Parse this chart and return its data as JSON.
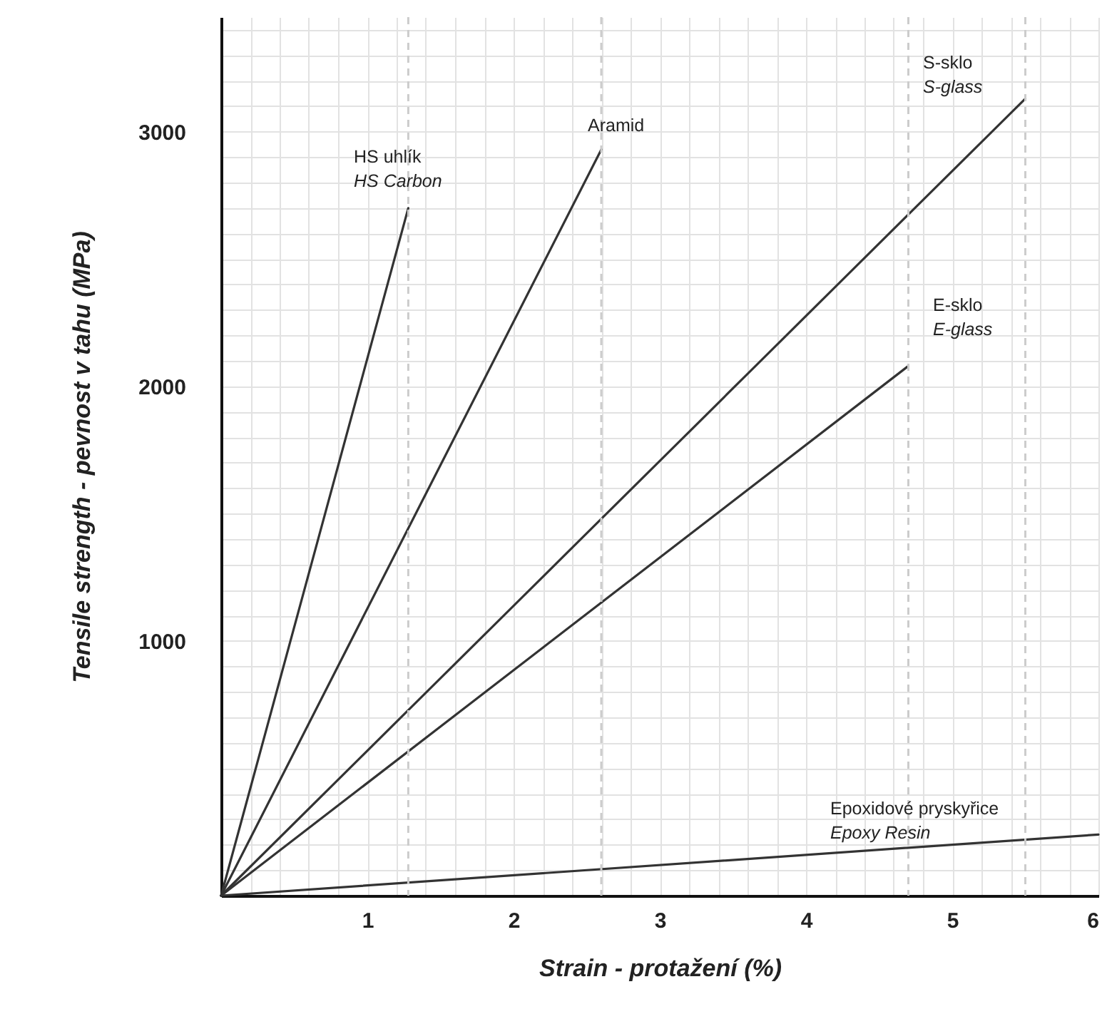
{
  "chart_data": {
    "type": "line",
    "xlabel": "Strain - protažení (%)",
    "ylabel": "Tensile strength - pevnost v tahu (MPa)",
    "xlim": [
      0,
      6
    ],
    "ylim": [
      0,
      3450
    ],
    "grid": true,
    "marker": "none",
    "line_style": "solid",
    "xticks": [
      {
        "value": 0.2,
        "label": null
      },
      {
        "value": 0.4,
        "label": null
      },
      {
        "value": 0.6,
        "label": null
      },
      {
        "value": 0.8,
        "label": null
      },
      1,
      {
        "value": 1.2,
        "label": null
      },
      {
        "value": 1.4,
        "label": null
      },
      {
        "value": 1.6,
        "label": null
      },
      {
        "value": 1.8,
        "label": null
      },
      2,
      {
        "value": 2.2,
        "label": null
      },
      {
        "value": 2.4,
        "label": null
      },
      {
        "value": 2.6,
        "label": null
      },
      {
        "value": 2.8,
        "label": null
      },
      3,
      {
        "value": 3.2,
        "label": null
      },
      {
        "value": 3.4,
        "label": null
      },
      {
        "value": 3.6,
        "label": null
      },
      {
        "value": 3.8,
        "label": null
      },
      4,
      {
        "value": 4.2,
        "label": null
      },
      {
        "value": 4.4,
        "label": null
      },
      {
        "value": 4.6,
        "label": null
      },
      {
        "value": 4.8,
        "label": null
      },
      5,
      {
        "value": 5.2,
        "label": null
      },
      {
        "value": 5.4,
        "label": null
      },
      {
        "value": 5.6,
        "label": null
      },
      {
        "value": 5.8,
        "label": null
      },
      6
    ],
    "yticks": [
      {
        "value": 100,
        "label": null
      },
      {
        "value": 200,
        "label": null
      },
      {
        "value": 300,
        "label": null
      },
      {
        "value": 400,
        "label": null
      },
      {
        "value": 500,
        "label": null
      },
      {
        "value": 600,
        "label": null
      },
      {
        "value": 700,
        "label": null
      },
      {
        "value": 800,
        "label": null
      },
      {
        "value": 900,
        "label": null
      },
      1000,
      {
        "value": 1100,
        "label": null
      },
      {
        "value": 1200,
        "label": null
      },
      {
        "value": 1300,
        "label": null
      },
      {
        "value": 1400,
        "label": null
      },
      {
        "value": 1500,
        "label": null
      },
      {
        "value": 1600,
        "label": null
      },
      {
        "value": 1700,
        "label": null
      },
      {
        "value": 1800,
        "label": null
      },
      {
        "value": 1900,
        "label": null
      },
      2000,
      {
        "value": 2100,
        "label": null
      },
      {
        "value": 2200,
        "label": null
      },
      {
        "value": 2300,
        "label": null
      },
      {
        "value": 2400,
        "label": null
      },
      {
        "value": 2500,
        "label": null
      },
      {
        "value": 2600,
        "label": null
      },
      {
        "value": 2700,
        "label": null
      },
      {
        "value": 2800,
        "label": null
      },
      {
        "value": 2900,
        "label": null
      },
      3000,
      {
        "value": 3100,
        "label": null
      },
      {
        "value": 3200,
        "label": null
      },
      {
        "value": 3300,
        "label": null
      },
      {
        "value": 3400,
        "label": null
      }
    ],
    "series": [
      {
        "color": "#333333",
        "x": [
          0,
          1.28
        ],
        "values": [
          0,
          2700
        ]
      },
      {
        "color": "#333333",
        "x": [
          0,
          2.6
        ],
        "values": [
          0,
          2930
        ]
      },
      {
        "color": "#333333",
        "x": [
          0,
          5.5
        ],
        "values": [
          0,
          3130
        ]
      },
      {
        "color": "#333333",
        "x": [
          0,
          4.7
        ],
        "values": [
          0,
          2080
        ]
      },
      {
        "color": "#333333",
        "x": [
          0,
          6
        ],
        "values": [
          0,
          240
        ]
      }
    ],
    "ref_lines": [
      {
        "axis": "x",
        "value": 1.28,
        "color": "#cccccc",
        "line_style": "dashed"
      },
      {
        "axis": "x",
        "value": 2.6,
        "color": "#cccccc",
        "line_style": "dashed"
      },
      {
        "axis": "x",
        "value": 4.7,
        "color": "#cccccc",
        "line_style": "dashed"
      },
      {
        "axis": "x",
        "value": 5.5,
        "color": "#cccccc",
        "line_style": "dashed"
      }
    ],
    "annotations": [
      "HS uhlík",
      "HS Carbon",
      "Aramid",
      "S-sklo",
      "S-glass",
      "E-sklo",
      "E-glass",
      "Epoxidové pryskyřice",
      "Epoxy Resin"
    ]
  }
}
